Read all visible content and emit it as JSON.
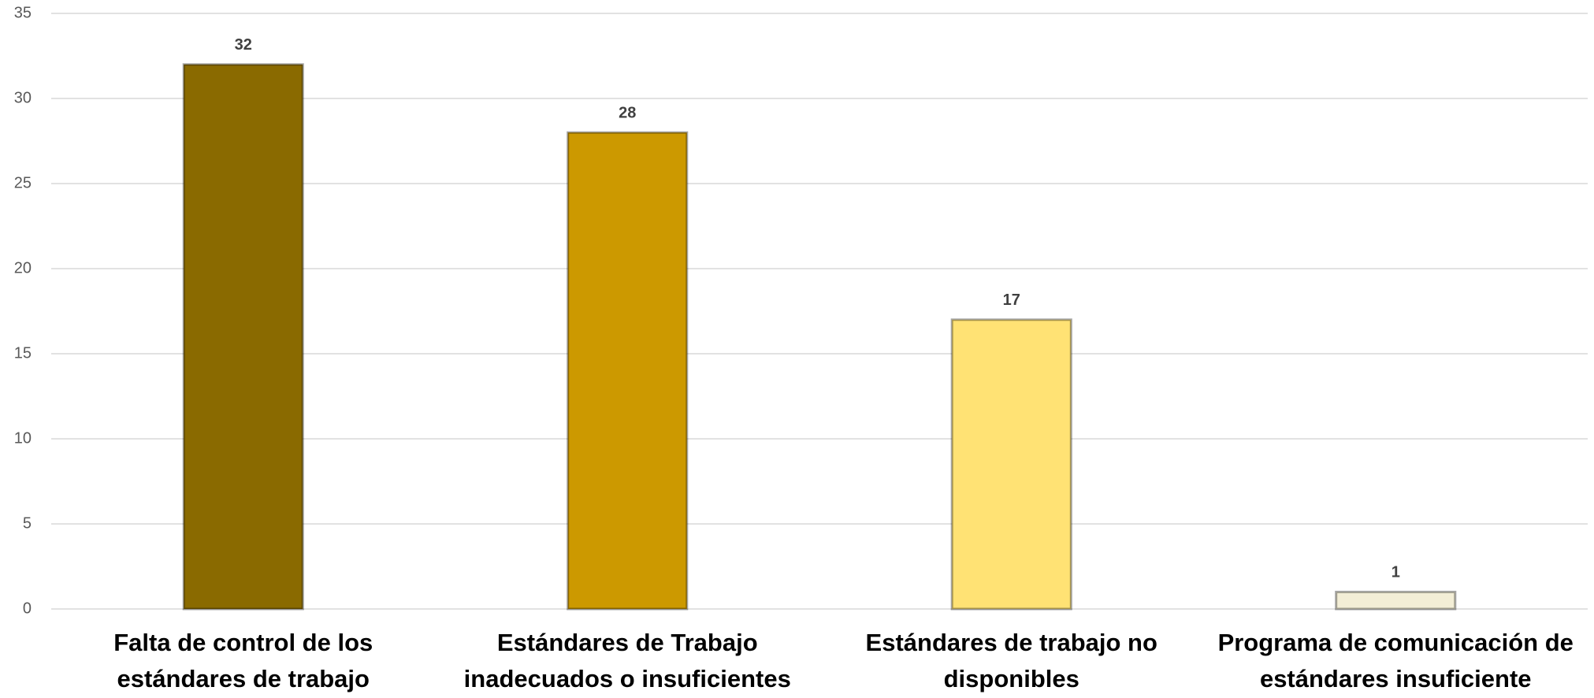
{
  "chart_data": {
    "type": "bar",
    "categories": [
      "Falta de control de los\nestándares de trabajo",
      "Estándares de Trabajo\ninadecuados o insuficientes",
      "Estándares de trabajo no\ndisponibles",
      "Programa de comunicación de\nestándares insuficiente"
    ],
    "values": [
      32,
      28,
      17,
      1
    ],
    "colors": [
      "#8a6a00",
      "#cc9900",
      "#ffe274",
      "#f3eed6"
    ],
    "ylim": [
      0,
      35
    ],
    "yticks": [
      0,
      5,
      10,
      15,
      20,
      25,
      30,
      35
    ],
    "grid": true,
    "data_labels": true
  }
}
